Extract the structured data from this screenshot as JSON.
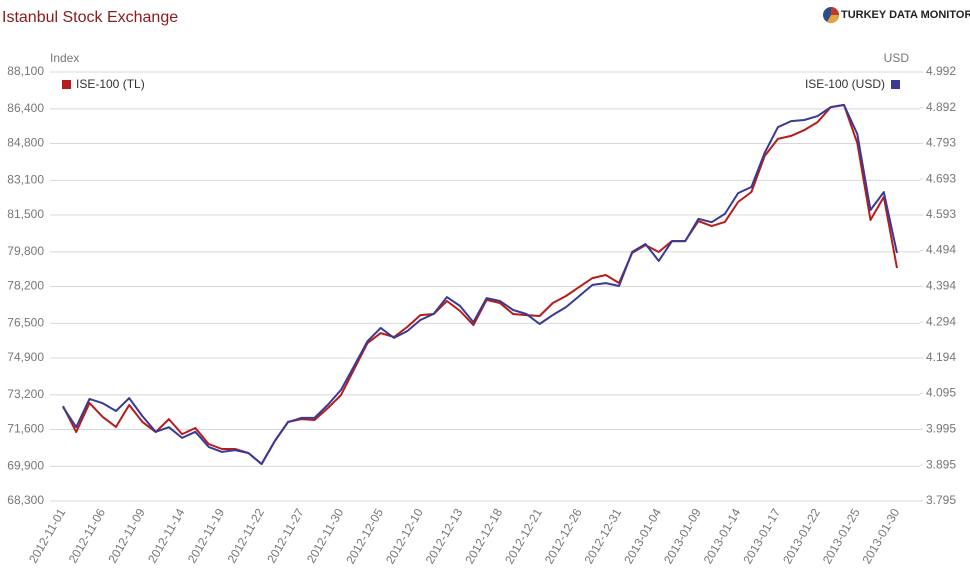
{
  "chart_data": {
    "type": "line",
    "title": "Istanbul Stock Exchange",
    "brand": "TURKEY DATA MONITOR",
    "y_axis_label": "Index",
    "y2_axis_label": "USD",
    "categories": [
      "2012-11-01",
      null,
      null,
      "2012-11-06",
      null,
      null,
      "2012-11-09",
      null,
      null,
      "2012-11-14",
      null,
      null,
      "2012-11-19",
      null,
      null,
      "2012-11-22",
      null,
      null,
      "2012-11-27",
      null,
      null,
      "2012-11-30",
      null,
      null,
      "2012-12-05",
      null,
      null,
      "2012-12-10",
      null,
      null,
      "2012-12-13",
      null,
      null,
      "2012-12-18",
      null,
      null,
      "2012-12-21",
      null,
      null,
      "2012-12-26",
      null,
      null,
      "2012-12-31",
      null,
      null,
      "2013-01-04",
      null,
      null,
      "2013-01-09",
      null,
      null,
      "2013-01-14",
      null,
      null,
      "2013-01-17",
      null,
      null,
      "2013-01-22",
      null,
      null,
      "2013-01-25",
      null,
      null,
      "2013-01-30"
    ],
    "ylim": [
      68300,
      88100
    ],
    "yticks": [
      {
        "value": 68300,
        "label": "68,300"
      },
      {
        "value": 69900,
        "label": "69,900"
      },
      {
        "value": 71600,
        "label": "71,600"
      },
      {
        "value": 73200,
        "label": "73,200"
      },
      {
        "value": 74900,
        "label": "74,900"
      },
      {
        "value": 76500,
        "label": "76,500"
      },
      {
        "value": 78200,
        "label": "78,200"
      },
      {
        "value": 79800,
        "label": "79,800"
      },
      {
        "value": 81500,
        "label": "81,500"
      },
      {
        "value": 83100,
        "label": "83,100"
      },
      {
        "value": 84800,
        "label": "84,800"
      },
      {
        "value": 86400,
        "label": "86,400"
      },
      {
        "value": 88100,
        "label": "88,100"
      }
    ],
    "y2lim": [
      3.795,
      4.992
    ],
    "y2ticks": [
      3.795,
      3.895,
      3.995,
      4.095,
      4.194,
      4.294,
      4.394,
      4.494,
      4.593,
      4.693,
      4.793,
      4.892,
      4.992
    ],
    "grid": true,
    "series": [
      {
        "name": "ISE-100 (TL)",
        "color": "#b71c1c",
        "legend": "top-left",
        "values": [
          72680,
          71480,
          72820,
          72180,
          71720,
          72730,
          71950,
          71480,
          72080,
          71390,
          71670,
          70930,
          70700,
          70700,
          70520,
          70010,
          71070,
          71950,
          72080,
          72040,
          72590,
          73190,
          74390,
          75590,
          76050,
          75870,
          76330,
          76880,
          76930,
          77530,
          77070,
          76420,
          77580,
          77440,
          76930,
          76880,
          76840,
          77440,
          77760,
          78180,
          78590,
          78730,
          78360,
          79750,
          80110,
          79790,
          80300,
          80300,
          81220,
          80990,
          81180,
          82100,
          82560,
          84220,
          85010,
          85150,
          85420,
          85790,
          86480,
          86580,
          84820,
          81270,
          82330,
          79050
        ]
      },
      {
        "name": "ISE-100 (USD)",
        "color": "#3a3a96",
        "axis": "y2",
        "legend": "top-right",
        "values": [
          4.057,
          4.001,
          4.08,
          4.068,
          4.046,
          4.082,
          4.032,
          3.988,
          4.001,
          3.971,
          3.988,
          3.946,
          3.932,
          3.937,
          3.929,
          3.898,
          3.962,
          4.015,
          4.027,
          4.027,
          4.063,
          4.105,
          4.172,
          4.241,
          4.278,
          4.25,
          4.269,
          4.3,
          4.317,
          4.364,
          4.339,
          4.294,
          4.361,
          4.353,
          4.328,
          4.317,
          4.289,
          4.314,
          4.336,
          4.367,
          4.398,
          4.403,
          4.395,
          4.49,
          4.512,
          4.465,
          4.52,
          4.52,
          4.582,
          4.573,
          4.596,
          4.654,
          4.671,
          4.766,
          4.838,
          4.855,
          4.858,
          4.869,
          4.894,
          4.9,
          4.819,
          4.607,
          4.657,
          4.487
        ]
      }
    ]
  }
}
